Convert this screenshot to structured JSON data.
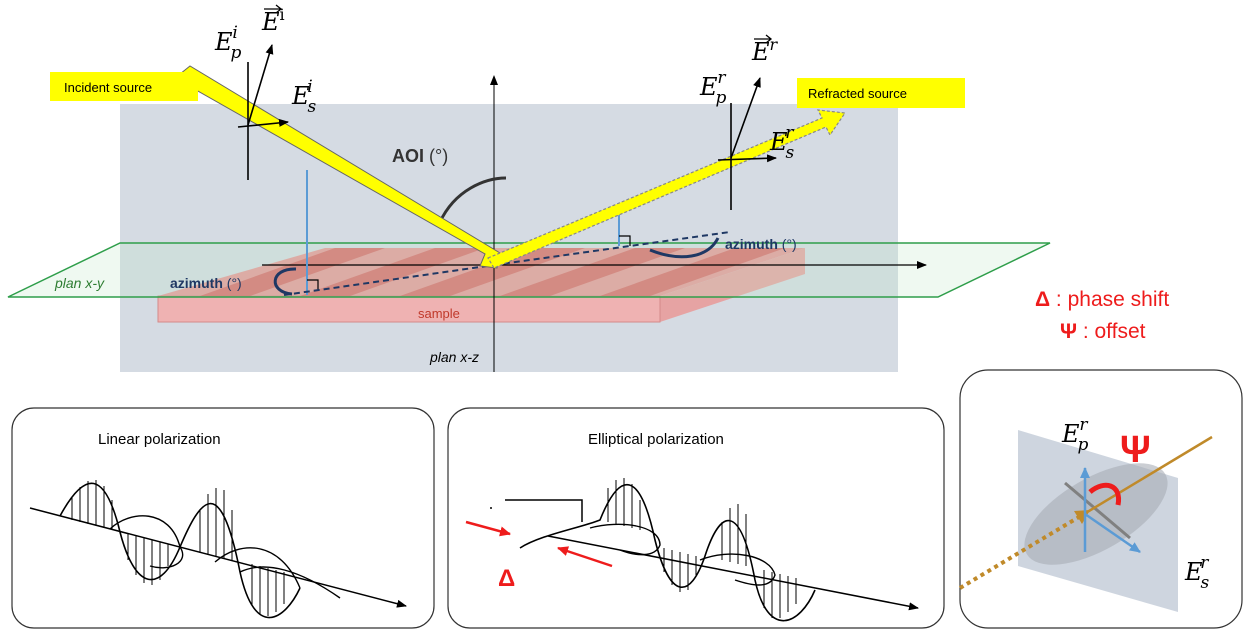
{
  "labels": {
    "incident_source": "Incident source",
    "refracted_source": "Refracted source",
    "aoi": "AOI",
    "aoi_unit": " (°)",
    "azimuth_left": "azimuth",
    "azimuth_right": "azimuth",
    "azimuth_unit": " (°)",
    "plan_xy": "plan x-y",
    "plan_xz": "plan x-z",
    "sample": "sample",
    "E": "E",
    "sup_i": "i",
    "sup_r": "r",
    "sub_p": "p",
    "sub_s": "s",
    "delta_symbol": "Δ",
    "delta_text": " : phase shift",
    "psi_symbol": "Ψ",
    "psi_text": " : offset",
    "linear_title": "Linear polarization",
    "elliptical_title": "Elliptical polarization",
    "delta_marker": "Δ",
    "psi_marker": "Ψ"
  },
  "colors": {
    "source_yellow": "#ffff00",
    "plane_gray": "#d5dbe3",
    "plan_green": "#2e9e4a",
    "sample_red": "#e27c7c",
    "sample_stripe": "#d95858",
    "navy": "#1f3864",
    "projection_blue": "#5b9bd5",
    "accent_red": "#ee1c1c",
    "beam_gold": "#c08a2a"
  }
}
